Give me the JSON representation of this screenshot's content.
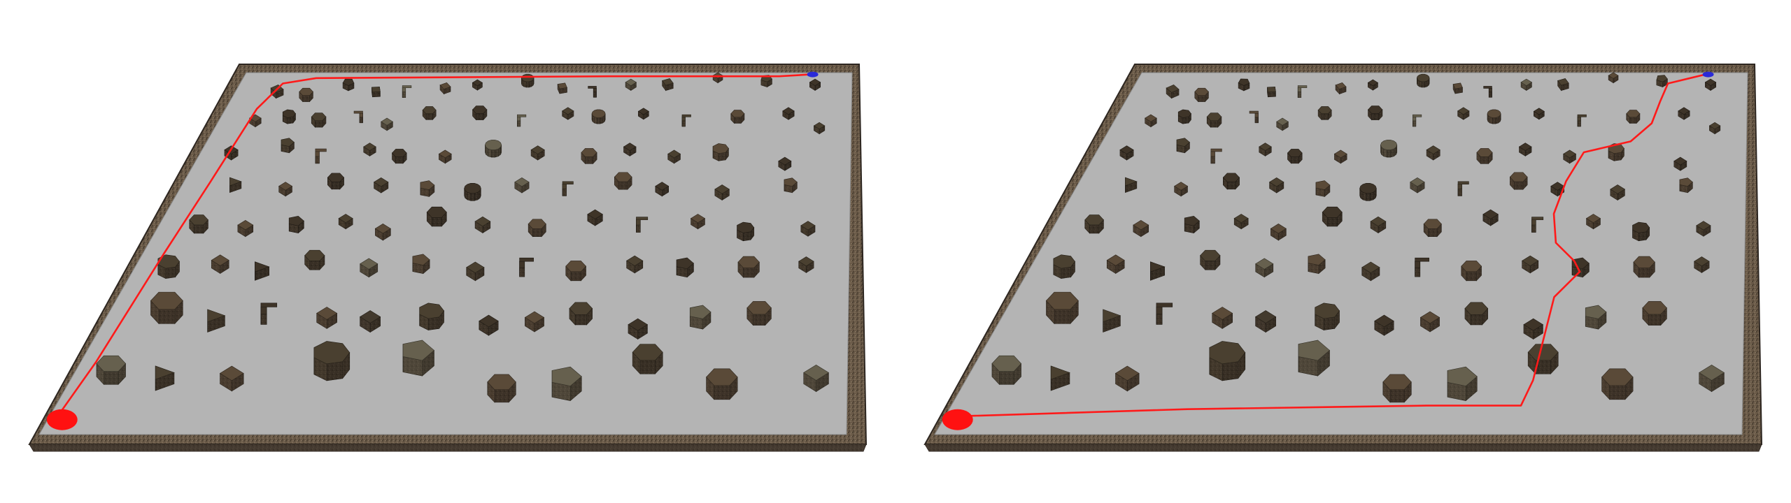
{
  "colors": {
    "background": "#ffffff",
    "floor": "#b4b4b4",
    "wall_top": "#5f5449",
    "wall_side": "#3f362e",
    "wall_rim": "#2d2620",
    "path": "#ff1a1a",
    "start_marker": "#ff1111",
    "goal_marker": "#2a2ad8",
    "obstacle_palette": [
      "#4a4030",
      "#5a4a38",
      "#3e3428",
      "#66604e",
      "#524536",
      "#6b5e4a",
      "#433a2e"
    ]
  },
  "scenes": [
    {
      "name": "left-scene",
      "path_style": "perimeter"
    },
    {
      "name": "right-scene",
      "path_style": "through-field"
    }
  ]
}
